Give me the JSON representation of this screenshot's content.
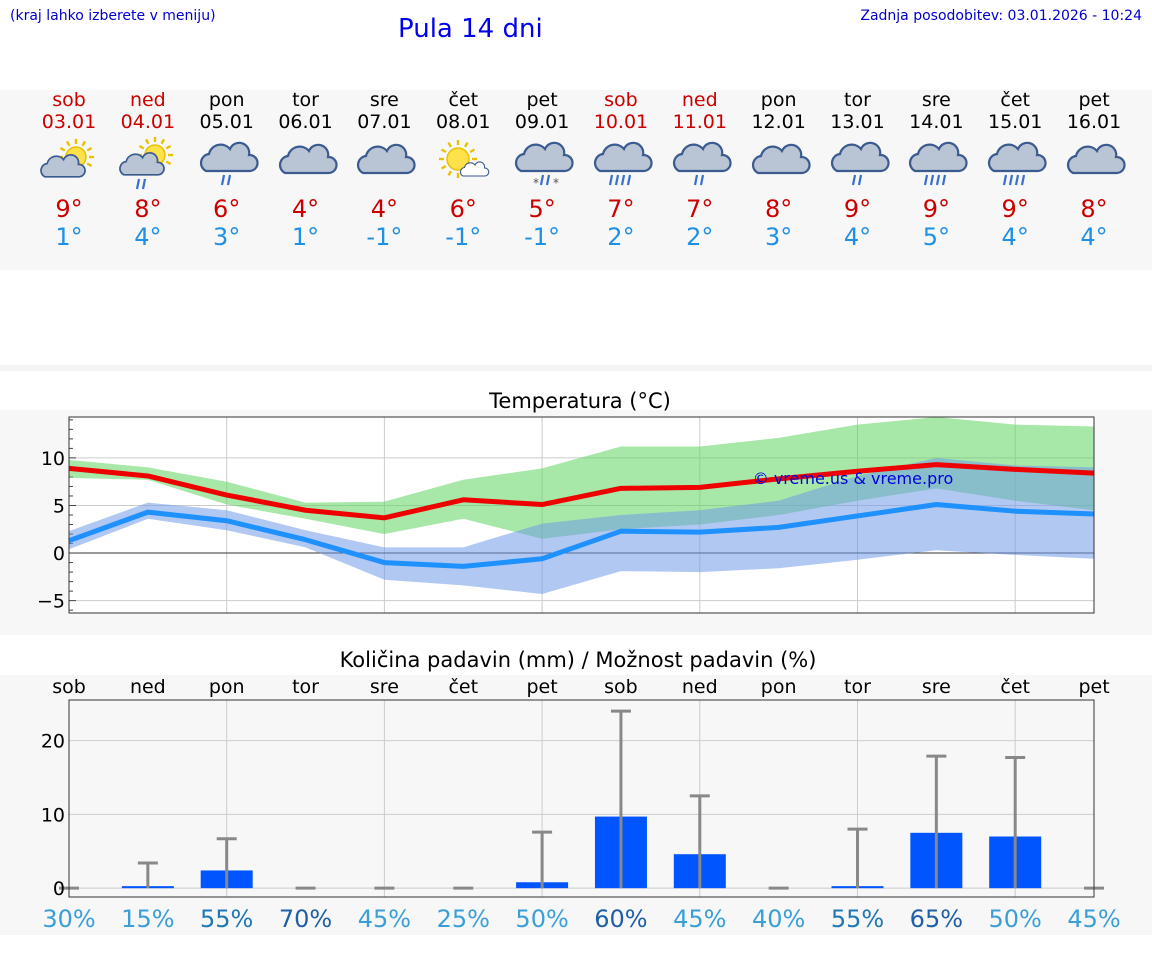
{
  "header": {
    "hint": "(kraj lahko izberete v meniju)",
    "title": "Pula 14 dni",
    "updated": "Zadnja posodobitev: 03.01.2026 - 10:24"
  },
  "days": [
    {
      "weekday": "sob",
      "date": "03.01",
      "max": "9°",
      "min": "1°",
      "weekend": true,
      "icon": "sun-cloud-icon"
    },
    {
      "weekday": "ned",
      "date": "04.01",
      "max": "8°",
      "min": "4°",
      "weekend": true,
      "icon": "sun-cloud-rain-icon"
    },
    {
      "weekday": "pon",
      "date": "05.01",
      "max": "6°",
      "min": "3°",
      "weekend": false,
      "icon": "cloud-rain-icon"
    },
    {
      "weekday": "tor",
      "date": "06.01",
      "max": "4°",
      "min": "1°",
      "weekend": false,
      "icon": "cloud-icon"
    },
    {
      "weekday": "sre",
      "date": "07.01",
      "max": "4°",
      "min": "-1°",
      "weekend": false,
      "icon": "cloud-icon"
    },
    {
      "weekday": "čet",
      "date": "08.01",
      "max": "6°",
      "min": "-1°",
      "weekend": false,
      "icon": "sun-small-cloud-icon"
    },
    {
      "weekday": "pet",
      "date": "09.01",
      "max": "5°",
      "min": "-1°",
      "weekend": false,
      "icon": "cloud-snow-rain-icon"
    },
    {
      "weekday": "sob",
      "date": "10.01",
      "max": "7°",
      "min": "2°",
      "weekend": true,
      "icon": "cloud-heavy-rain-icon"
    },
    {
      "weekday": "ned",
      "date": "11.01",
      "max": "7°",
      "min": "2°",
      "weekend": true,
      "icon": "cloud-rain-icon"
    },
    {
      "weekday": "pon",
      "date": "12.01",
      "max": "8°",
      "min": "3°",
      "weekend": false,
      "icon": "cloud-icon"
    },
    {
      "weekday": "tor",
      "date": "13.01",
      "max": "9°",
      "min": "4°",
      "weekend": false,
      "icon": "cloud-rain-icon"
    },
    {
      "weekday": "sre",
      "date": "14.01",
      "max": "9°",
      "min": "5°",
      "weekend": false,
      "icon": "cloud-heavy-rain-icon"
    },
    {
      "weekday": "čet",
      "date": "15.01",
      "max": "9°",
      "min": "4°",
      "weekend": false,
      "icon": "cloud-heavy-rain-icon"
    },
    {
      "weekday": "pet",
      "date": "16.01",
      "max": "8°",
      "min": "4°",
      "weekend": false,
      "icon": "cloud-icon"
    }
  ],
  "chart_data": [
    {
      "type": "line",
      "title": "Temperatura (°C)",
      "ylim": [
        -6.3,
        14.3
      ],
      "yticks": [
        10,
        5,
        0,
        -5
      ],
      "ytick_labels": [
        "10",
        "5",
        "0",
        "−5"
      ],
      "watermark": "© vreme.us & vreme.pro",
      "x": [
        0,
        1,
        2,
        3,
        4,
        5,
        6,
        7,
        8,
        9,
        10,
        11,
        12,
        13
      ],
      "series": [
        {
          "name": "max",
          "color": "#ee0000",
          "values": [
            8.9,
            8.1,
            6.1,
            4.5,
            3.7,
            5.6,
            5.1,
            6.8,
            6.9,
            7.8,
            8.6,
            9.3,
            8.8,
            8.4
          ]
        },
        {
          "name": "min",
          "color": "#1e90ff",
          "values": [
            1.3,
            4.3,
            3.4,
            1.4,
            -1.0,
            -1.4,
            -0.6,
            2.3,
            2.2,
            2.7,
            3.9,
            5.1,
            4.4,
            4.1
          ]
        }
      ],
      "bands": [
        {
          "name": "max-range",
          "color": "#5fd35f",
          "upper": [
            9.8,
            9.0,
            7.5,
            5.3,
            5.4,
            7.7,
            8.9,
            11.2,
            11.2,
            12.1,
            13.5,
            14.3,
            13.5,
            13.3
          ],
          "lower": [
            7.9,
            7.7,
            5.1,
            3.6,
            2.0,
            3.6,
            1.5,
            2.5,
            3.0,
            4.0,
            5.5,
            6.8,
            5.5,
            4.5
          ]
        },
        {
          "name": "min-range",
          "color": "#6f9be8",
          "upper": [
            2.3,
            5.3,
            4.5,
            2.4,
            0.6,
            0.6,
            3.1,
            4.0,
            4.5,
            5.5,
            8.1,
            10.0,
            9.2,
            9.0
          ],
          "lower": [
            0.4,
            3.6,
            2.4,
            0.6,
            -2.8,
            -3.4,
            -4.3,
            -1.9,
            -2.0,
            -1.6,
            -0.7,
            0.3,
            -0.2,
            -0.6
          ]
        }
      ]
    },
    {
      "type": "bar",
      "title": "Količina padavin (mm) / Možnost padavin (%)",
      "ylim": [
        -1.2,
        25.5
      ],
      "yticks": [
        20,
        10,
        0
      ],
      "ytick_labels": [
        "20",
        "10",
        "0"
      ],
      "categories": [
        "sob",
        "ned",
        "pon",
        "tor",
        "sre",
        "čet",
        "pet",
        "sob",
        "ned",
        "pon",
        "tor",
        "sre",
        "čet",
        "pet"
      ],
      "values": [
        0,
        0.1,
        2.4,
        0,
        0,
        0,
        0.8,
        9.7,
        4.6,
        0,
        0.1,
        7.5,
        7.0,
        0
      ],
      "error_upper": [
        0,
        3.4,
        6.7,
        0,
        0,
        0,
        7.6,
        24.0,
        12.5,
        0,
        8.0,
        17.9,
        17.7,
        0
      ],
      "probability": [
        "30%",
        "15%",
        "55%",
        "70%",
        "45%",
        "25%",
        "50%",
        "60%",
        "45%",
        "40%",
        "55%",
        "65%",
        "50%",
        "45%"
      ],
      "probability_colors": [
        "#3a9fd8",
        "#3a9fd8",
        "#1f78b4",
        "#1f5fa8",
        "#3a9fd8",
        "#3a9fd8",
        "#3a9fd8",
        "#1f5fa8",
        "#3a9fd8",
        "#3a9fd8",
        "#1f78b4",
        "#1f5fa8",
        "#3a9fd8",
        "#3a9fd8"
      ],
      "bar_color": "#0055ff",
      "error_color": "#888888"
    }
  ]
}
